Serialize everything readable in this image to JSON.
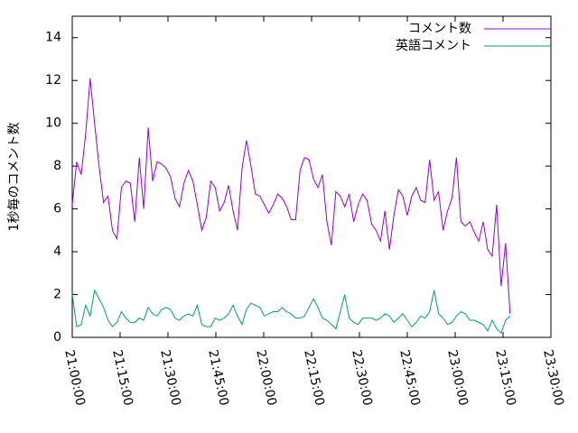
{
  "chart_data": {
    "type": "line",
    "y_label": "1秒毎のコメント数",
    "x": [
      "21:00:00",
      "21:01:24",
      "21:02:48",
      "21:04:12",
      "21:05:36",
      "21:07:00",
      "21:08:24",
      "21:09:48",
      "21:11:12",
      "21:12:36",
      "21:14:00",
      "21:15:24",
      "21:16:48",
      "21:18:12",
      "21:19:36",
      "21:21:00",
      "21:22:24",
      "21:23:48",
      "21:25:12",
      "21:26:36",
      "21:28:00",
      "21:29:24",
      "21:30:48",
      "21:32:12",
      "21:33:36",
      "21:35:00",
      "21:36:24",
      "21:37:48",
      "21:39:12",
      "21:40:36",
      "21:42:00",
      "21:43:24",
      "21:44:48",
      "21:46:12",
      "21:47:36",
      "21:49:00",
      "21:50:24",
      "21:51:48",
      "21:53:12",
      "21:54:36",
      "21:56:00",
      "21:57:24",
      "21:58:48",
      "22:00:12",
      "22:01:36",
      "22:03:00",
      "22:04:24",
      "22:05:48",
      "22:07:12",
      "22:08:36",
      "22:10:00",
      "22:11:24",
      "22:12:48",
      "22:14:12",
      "22:15:36",
      "22:17:00",
      "22:18:24",
      "22:19:48",
      "22:21:12",
      "22:22:36",
      "22:24:00",
      "22:25:24",
      "22:26:48",
      "22:28:12",
      "22:29:36",
      "22:31:00",
      "22:32:24",
      "22:33:48",
      "22:35:12",
      "22:36:36",
      "22:38:00",
      "22:39:24",
      "22:40:48",
      "22:42:12",
      "22:43:36",
      "22:45:00",
      "22:46:24",
      "22:47:48",
      "22:49:12",
      "22:50:36",
      "22:52:00",
      "22:53:24",
      "22:54:48",
      "22:56:12",
      "22:57:36",
      "22:59:00",
      "23:00:24",
      "23:01:48",
      "23:03:12",
      "23:04:36",
      "23:06:00",
      "23:07:24",
      "23:08:48",
      "23:10:12",
      "23:11:36",
      "23:13:00",
      "23:14:24",
      "23:15:48",
      "23:17:12"
    ],
    "series": [
      {
        "name": "コメント数",
        "color": "#9400d3",
        "values": [
          6.2,
          8.2,
          7.6,
          9.5,
          12.1,
          10,
          8,
          6.3,
          6.6,
          5.0,
          4.6,
          7.0,
          7.3,
          7.2,
          5.4,
          8.4,
          6.0,
          9.8,
          7.3,
          8.2,
          8.1,
          7.9,
          7.5,
          6.5,
          6.1,
          7.2,
          7.8,
          7.3,
          6.2,
          5.0,
          5.6,
          7.3,
          7.0,
          5.9,
          6.3,
          7.1,
          5.9,
          5.0,
          7.9,
          9.2,
          8.0,
          6.7,
          6.6,
          6.2,
          5.8,
          6.2,
          6.7,
          6.5,
          6.1,
          5.5,
          5.5,
          7.8,
          8.4,
          8.3,
          7.4,
          7.0,
          7.6,
          5.4,
          4.3,
          6.8,
          6.6,
          6.1,
          6.7,
          5.4,
          6.2,
          6.7,
          6.4,
          5.3,
          5.0,
          4.5,
          5.9,
          4.1,
          5.7,
          6.9,
          6.6,
          5.7,
          6.6,
          7.0,
          6.4,
          6.3,
          8.3,
          6.4,
          6.8,
          5.0,
          5.9,
          6.5,
          8.4,
          5.4,
          5.2,
          5.4,
          4.9,
          4.5,
          5.4,
          4.1,
          3.8,
          6.2,
          2.4,
          4.4,
          1.1
        ]
      },
      {
        "name": "英語コメント",
        "color": "#009e73",
        "values": [
          2.0,
          0.5,
          0.6,
          1.5,
          1.0,
          2.2,
          1.8,
          1.4,
          0.8,
          0.5,
          0.7,
          1.2,
          0.9,
          0.7,
          0.7,
          0.9,
          0.8,
          1.4,
          1.1,
          1.0,
          1.3,
          1.4,
          1.3,
          0.9,
          0.8,
          1.0,
          1.1,
          1.0,
          1.5,
          0.6,
          0.5,
          0.5,
          0.9,
          0.8,
          0.9,
          1.1,
          1.5,
          1.0,
          0.6,
          1.3,
          1.6,
          1.5,
          1.4,
          1.0,
          1.1,
          1.2,
          1.2,
          1.4,
          1.2,
          1.1,
          0.9,
          0.9,
          1.0,
          1.4,
          1.8,
          1.4,
          0.9,
          0.8,
          0.6,
          0.4,
          1.2,
          2.0,
          0.9,
          0.7,
          0.6,
          0.9,
          0.9,
          0.9,
          0.8,
          0.9,
          1.1,
          1.0,
          0.7,
          0.9,
          1.1,
          0.8,
          0.5,
          0.7,
          1.0,
          0.9,
          1.2,
          2.2,
          1.1,
          0.9,
          0.6,
          0.7,
          1.0,
          1.2,
          1.1,
          0.8,
          0.8,
          0.7,
          0.6,
          0.3,
          0.8,
          0.4,
          0.2,
          0.8,
          1.0
        ]
      }
    ],
    "xlim": [
      "21:00:00",
      "23:30:00"
    ],
    "xticks": [
      "21:00:00",
      "21:15:00",
      "21:30:00",
      "21:45:00",
      "22:00:00",
      "22:15:00",
      "22:30:00",
      "22:45:00",
      "23:00:00",
      "23:15:00",
      "23:30:00"
    ],
    "ylim": [
      0,
      15
    ],
    "yticks": [
      0,
      2,
      4,
      6,
      8,
      10,
      12,
      14
    ],
    "legend": "top-right"
  }
}
